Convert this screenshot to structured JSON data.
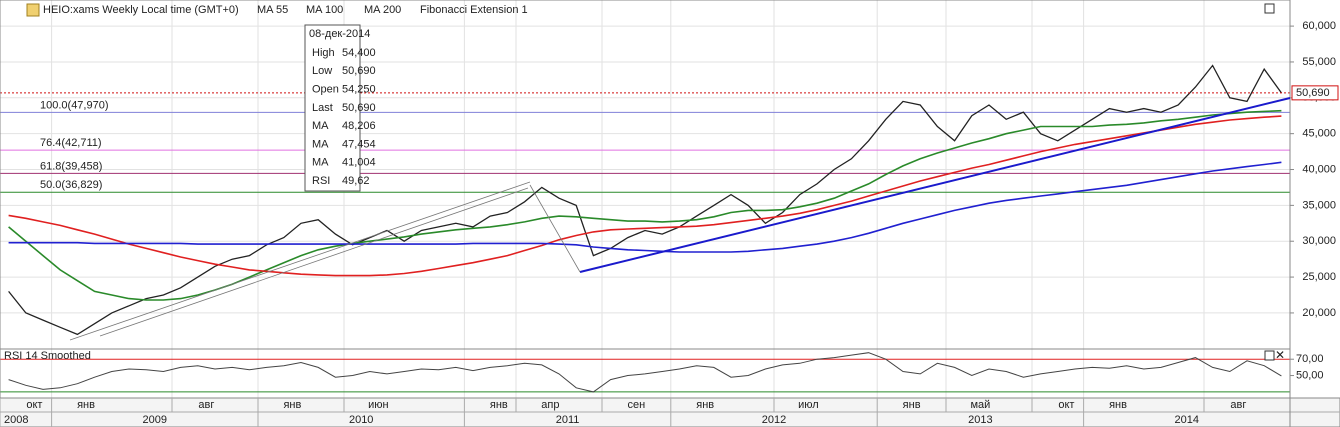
{
  "chart_data": [
    {
      "type": "line",
      "title": "HEIO:xams Weekly Local time (GMT+0)",
      "categories": [
        "окт",
        null,
        null,
        "янв",
        null,
        null,
        null,
        null,
        null,
        null,
        "авг",
        null,
        null,
        null,
        null,
        "янв",
        null,
        null,
        null,
        null,
        "июн",
        null,
        null,
        null,
        null,
        null,
        null,
        "янв",
        null,
        null,
        "апр",
        null,
        null,
        null,
        null,
        "сен",
        null,
        null,
        null,
        "янв",
        null,
        null,
        null,
        null,
        null,
        "июл",
        null,
        null,
        null,
        null,
        null,
        "янв",
        null,
        null,
        null,
        "май",
        null,
        null,
        null,
        null,
        "окт",
        null,
        null,
        "янв",
        null,
        null,
        null,
        null,
        null,
        null,
        "авг",
        null,
        null,
        null,
        null
      ],
      "years": [
        "2008",
        "2009",
        "2010",
        "2011",
        "2012",
        "2013",
        "2014"
      ],
      "series": [
        {
          "color": "#222222",
          "values": [
            23000,
            20000,
            19000,
            18000,
            17000,
            18500,
            20000,
            21000,
            22000,
            22500,
            23500,
            25000,
            26500,
            27500,
            28000,
            29500,
            30500,
            32500,
            33000,
            31000,
            29500,
            30500,
            31500,
            30000,
            31500,
            32000,
            32500,
            32000,
            33500,
            34000,
            35500,
            37500,
            36000,
            35000,
            28000,
            29000,
            30500,
            31500,
            31000,
            32000,
            33500,
            35000,
            36500,
            35000,
            32500,
            34000,
            36500,
            38000,
            40000,
            41500,
            44000,
            47000,
            49500,
            49000,
            46000,
            44000,
            47500,
            49000,
            47000,
            48000,
            45000,
            44000,
            45500,
            47000,
            48500,
            48000,
            48500,
            48000,
            49000,
            51500,
            54500,
            50000,
            49500,
            54000,
            50690
          ]
        },
        {
          "name": "MA 55",
          "color": "#2a8a2a",
          "values": [
            32000,
            30000,
            28000,
            26000,
            24500,
            23000,
            22500,
            22000,
            21800,
            21800,
            22000,
            22500,
            23200,
            24000,
            25000,
            26000,
            27000,
            28000,
            28800,
            29300,
            29700,
            30000,
            30300,
            30600,
            31000,
            31300,
            31600,
            31800,
            32000,
            32300,
            32700,
            33200,
            33500,
            33400,
            33200,
            33000,
            32800,
            32800,
            32700,
            32800,
            33000,
            33400,
            34000,
            34300,
            34300,
            34400,
            34800,
            35300,
            36000,
            37000,
            38000,
            39300,
            40500,
            41500,
            42300,
            43000,
            43700,
            44300,
            45000,
            45500,
            46000,
            46000,
            46000,
            46000,
            46200,
            46300,
            46500,
            46800,
            47000,
            47300,
            47600,
            47800,
            48000,
            48100,
            48206
          ]
        },
        {
          "name": "MA 100",
          "color": "#e02020",
          "values": [
            33600,
            33200,
            32700,
            32200,
            31600,
            31000,
            30300,
            29600,
            29000,
            28400,
            27800,
            27300,
            26800,
            26400,
            26000,
            25800,
            25600,
            25400,
            25300,
            25200,
            25200,
            25200,
            25300,
            25500,
            25800,
            26200,
            26600,
            27000,
            27500,
            28000,
            28700,
            29400,
            30200,
            30800,
            31300,
            31600,
            31700,
            31800,
            31900,
            32000,
            32100,
            32300,
            32600,
            32900,
            33200,
            33500,
            33900,
            34400,
            35000,
            35600,
            36300,
            37000,
            37700,
            38400,
            39000,
            39600,
            40200,
            40700,
            41300,
            41900,
            42500,
            43000,
            43500,
            43900,
            44300,
            44700,
            45100,
            45500,
            45900,
            46300,
            46600,
            46900,
            47100,
            47300,
            47454
          ]
        },
        {
          "name": "MA 200",
          "color": "#2020d0",
          "values": [
            29800,
            29800,
            29800,
            29800,
            29800,
            29700,
            29700,
            29700,
            29700,
            29700,
            29700,
            29600,
            29600,
            29600,
            29600,
            29600,
            29600,
            29600,
            29600,
            29600,
            29600,
            29600,
            29600,
            29600,
            29600,
            29600,
            29600,
            29700,
            29700,
            29700,
            29700,
            29700,
            29600,
            29500,
            29200,
            29000,
            28800,
            28700,
            28600,
            28500,
            28500,
            28500,
            28500,
            28600,
            28800,
            29000,
            29300,
            29600,
            30000,
            30500,
            31100,
            31800,
            32500,
            33100,
            33700,
            34300,
            34800,
            35300,
            35700,
            36000,
            36300,
            36600,
            36900,
            37200,
            37500,
            37800,
            38200,
            38600,
            39000,
            39400,
            39800,
            40100,
            40400,
            40700,
            41004
          ]
        }
      ],
      "ylim": [
        14970,
        63640
      ],
      "yticks": [
        {
          "value": 20000,
          "label": "20,000"
        },
        {
          "value": 25000,
          "label": "25,000"
        },
        {
          "value": 30000,
          "label": "30,000"
        },
        {
          "value": 35000,
          "label": "35,000"
        },
        {
          "value": 40000,
          "label": "40,000"
        },
        {
          "value": 45000,
          "label": "45,000"
        },
        {
          "value": 50000,
          "label": "50,000"
        },
        {
          "value": 55000,
          "label": "55,000"
        },
        {
          "value": 60000,
          "label": "60,000"
        }
      ],
      "grid": true,
      "fibonacci": {
        "title": "Fibonacci Extension 1",
        "levels": [
          {
            "value": 47970,
            "label": "100.0(47,970)",
            "color": "#2020c0",
            "line_color": "#8080d8"
          },
          {
            "value": 42711,
            "label": "76.4(42,711)",
            "color": "#c020c0",
            "line_color": "#e070e0"
          },
          {
            "value": 39458,
            "label": "61.8(39,458)",
            "color": "#900060",
            "line_color": "#a03070"
          },
          {
            "value": 36829,
            "label": "50.0(36,829)",
            "color": "#1a7a1a",
            "line_color": "#2a8a2a"
          }
        ]
      },
      "last": {
        "value": 50690,
        "label": "50,690",
        "color": "#d01010"
      },
      "info_box": {
        "date": "08-дек-2014",
        "rows": [
          {
            "label": "High",
            "value": "54,400",
            "color": "#222222"
          },
          {
            "label": "Low",
            "value": "50,690",
            "color": "#222222"
          },
          {
            "label": "Open",
            "value": "54,250",
            "color": "#222222"
          },
          {
            "label": "Last",
            "value": "50,690",
            "color": "#222222"
          },
          {
            "label": "MA",
            "value": "48,206",
            "color": "#2a8a2a"
          },
          {
            "label": "MA",
            "value": "47,454",
            "color": "#e02020"
          },
          {
            "label": "MA",
            "value": "41,004",
            "color": "#2020d0"
          },
          {
            "label": "RSI",
            "value": "49,62",
            "color": "#222222"
          }
        ]
      }
    },
    {
      "type": "line",
      "title": "RSI 14 Smoothed",
      "series": [
        {
          "color": "#444444",
          "values": [
            45,
            38,
            33,
            35,
            40,
            48,
            55,
            58,
            57,
            55,
            60,
            62,
            58,
            60,
            57,
            60,
            62,
            66,
            60,
            48,
            50,
            55,
            52,
            55,
            58,
            57,
            60,
            56,
            60,
            62,
            65,
            63,
            52,
            35,
            30,
            45,
            50,
            52,
            55,
            58,
            62,
            60,
            48,
            50,
            58,
            63,
            65,
            70,
            72,
            75,
            78,
            70,
            55,
            52,
            65,
            60,
            50,
            58,
            55,
            48,
            52,
            55,
            58,
            60,
            59,
            62,
            58,
            60,
            66,
            72,
            60,
            55,
            68,
            62,
            49.62
          ]
        }
      ],
      "ylim": [
        22.5,
        82.5
      ],
      "yticks": [
        {
          "value": 70,
          "label": "70,00"
        },
        {
          "value": 50,
          "label": "50,00"
        }
      ],
      "levels": [
        {
          "value": 70,
          "color": "#e02020"
        },
        {
          "value": 30,
          "color": "#2a8a2a"
        }
      ]
    }
  ]
}
